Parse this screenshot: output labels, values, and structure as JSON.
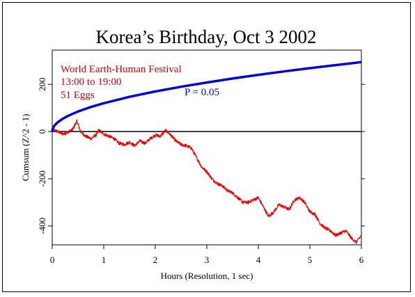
{
  "chart_data": {
    "type": "line",
    "title": "Korea’s Birthday, Oct 3 2002",
    "xlabel": "Hours (Resolution, 1 sec)",
    "ylabel": "Cumsum (Z^2 - 1)",
    "xlim": [
      0,
      6
    ],
    "ylim": [
      -480,
      345
    ],
    "x_ticks": [
      0,
      1,
      2,
      3,
      4,
      5,
      6
    ],
    "y_ticks": [
      -400,
      -200,
      0,
      200
    ],
    "annotations": [
      {
        "text": "World Earth-Human Festival",
        "color": "#cc0000"
      },
      {
        "text": "13:00 to 19:00",
        "color": "#cc0000"
      },
      {
        "text": "51 Eggs",
        "color": "#cc0000"
      },
      {
        "text": "P = 0.05",
        "color": "#0000cc"
      }
    ],
    "series": [
      {
        "color": "#ee0000",
        "x": [
          0,
          0.1,
          0.2,
          0.3,
          0.4,
          0.48,
          0.55,
          0.65,
          0.75,
          0.85,
          0.9,
          1.0,
          1.1,
          1.2,
          1.3,
          1.4,
          1.5,
          1.6,
          1.7,
          1.8,
          1.9,
          2.0,
          2.1,
          2.2,
          2.3,
          2.4,
          2.5,
          2.6,
          2.7,
          2.8,
          2.9,
          3.0,
          3.1,
          3.2,
          3.3,
          3.4,
          3.5,
          3.6,
          3.7,
          3.8,
          3.9,
          4.0,
          4.1,
          4.2,
          4.3,
          4.4,
          4.5,
          4.6,
          4.7,
          4.8,
          4.9,
          5.0,
          5.1,
          5.2,
          5.3,
          5.4,
          5.5,
          5.6,
          5.7,
          5.8,
          5.9,
          6.0
        ],
        "y": [
          10,
          0,
          -10,
          -5,
          10,
          45,
          0,
          -20,
          -30,
          -15,
          5,
          -10,
          -20,
          -30,
          -50,
          -55,
          -45,
          -60,
          -40,
          -50,
          -30,
          -15,
          -20,
          5,
          -15,
          -40,
          -55,
          -60,
          -70,
          -110,
          -150,
          -170,
          -200,
          -220,
          -230,
          -250,
          -260,
          -280,
          -300,
          -300,
          -290,
          -280,
          -320,
          -360,
          -340,
          -310,
          -320,
          -330,
          -290,
          -280,
          -300,
          -340,
          -350,
          -390,
          -410,
          -420,
          -440,
          -430,
          -420,
          -450,
          -470,
          -440
        ]
      },
      {
        "name": "P = 0.05",
        "color": "#0000dd",
        "formula": "2.0 * sqrt(seconds)",
        "x": [
          0,
          0.005,
          0.02,
          0.05,
          0.1,
          0.2,
          0.3,
          0.5,
          0.75,
          1.0,
          1.5,
          2.0,
          2.5,
          3.0,
          3.5,
          4.0,
          4.5,
          5.0,
          5.5,
          6.0
        ],
        "y": [
          0,
          8.5,
          17,
          26.8,
          37.9,
          53.7,
          65.7,
          84.9,
          103.9,
          120.0,
          147.0,
          169.7,
          189.7,
          207.8,
          224.5,
          240.0,
          254.6,
          268.3,
          281.4,
          293.9
        ]
      }
    ]
  }
}
